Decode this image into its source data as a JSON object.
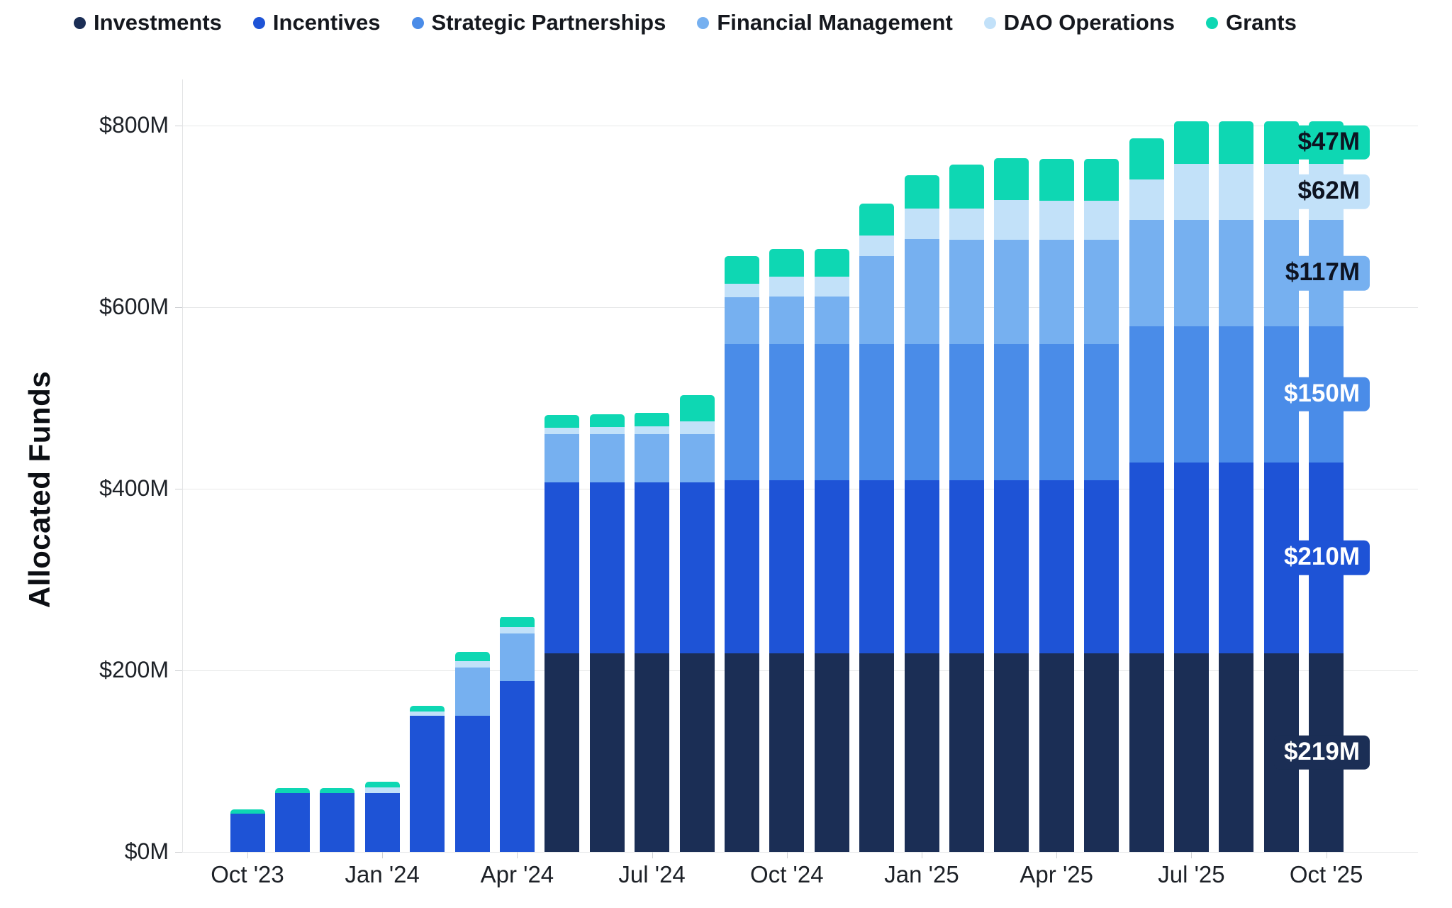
{
  "legend": {
    "items": [
      {
        "label": "Investments",
        "color": "#1b2e55"
      },
      {
        "label": "Incentives",
        "color": "#1e53d6"
      },
      {
        "label": "Strategic Partnerships",
        "color": "#4a8ce8"
      },
      {
        "label": "Financial Management",
        "color": "#76b0f0"
      },
      {
        "label": "DAO Operations",
        "color": "#c2e1f9"
      },
      {
        "label": "Grants",
        "color": "#0ed7b3"
      }
    ]
  },
  "chart_data": {
    "type": "bar",
    "stacked": true,
    "title": "",
    "xlabel": "",
    "ylabel": "Allocated Funds",
    "unit": "$M",
    "ylim": [
      0,
      800
    ],
    "grid": true,
    "legend_position": "top-left",
    "y_ticks": [
      0,
      200,
      400,
      600,
      800
    ],
    "y_tick_labels": [
      "$0M",
      "$200M",
      "$400M",
      "$600M",
      "$800M"
    ],
    "x": [
      "Oct '23",
      "Nov '23",
      "Dec '23",
      "Jan '24",
      "Feb '24",
      "Mar '24",
      "Apr '24",
      "May '24",
      "Jun '24",
      "Jul '24",
      "Aug '24",
      "Sep '24",
      "Oct '24",
      "Nov '24",
      "Dec '24",
      "Jan '25",
      "Feb '25",
      "Mar '25",
      "Apr '25",
      "May '25",
      "Jun '25",
      "Jul '25",
      "Aug '25",
      "Sep '25",
      "Oct '25"
    ],
    "x_tick_labels": [
      "Oct '23",
      "Jan '24",
      "Apr '24",
      "Jul '24",
      "Oct '24",
      "Jan '25",
      "Apr '25",
      "Jul '25",
      "Oct '25"
    ],
    "series": [
      {
        "name": "Investments",
        "color": "#1b2e55",
        "values": [
          0,
          0,
          0,
          0,
          0,
          0,
          0,
          219,
          219,
          219,
          219,
          219,
          219,
          219,
          219,
          219,
          219,
          219,
          219,
          219,
          219,
          219,
          219,
          219,
          219
        ]
      },
      {
        "name": "Incentives",
        "color": "#1e53d6",
        "values": [
          42,
          65,
          65,
          65,
          150,
          150,
          188,
          188,
          188,
          188,
          188,
          190,
          190,
          190,
          190,
          190,
          190,
          190,
          190,
          190,
          210,
          210,
          210,
          210,
          210
        ]
      },
      {
        "name": "Strategic Partnerships",
        "color": "#4a8ce8",
        "values": [
          0,
          0,
          0,
          0,
          0,
          0,
          0,
          0,
          0,
          0,
          0,
          150,
          150,
          150,
          150,
          150,
          150,
          150,
          150,
          150,
          150,
          150,
          150,
          150,
          150
        ]
      },
      {
        "name": "Financial Management",
        "color": "#76b0f0",
        "values": [
          0,
          0,
          0,
          0,
          0,
          53,
          53,
          53,
          53,
          53,
          53,
          52,
          53,
          53,
          97,
          116,
          115,
          115,
          115,
          115,
          117,
          117,
          117,
          117,
          117
        ]
      },
      {
        "name": "DAO Operations",
        "color": "#c2e1f9",
        "values": [
          0,
          0,
          0,
          6,
          5,
          7,
          7,
          7,
          8,
          9,
          14,
          15,
          22,
          22,
          23,
          34,
          35,
          44,
          43,
          43,
          45,
          62,
          62,
          62,
          62
        ]
      },
      {
        "name": "Grants",
        "color": "#0ed7b3",
        "values": [
          5,
          5,
          5,
          6,
          6,
          10,
          11,
          14,
          14,
          15,
          29,
          30,
          30,
          30,
          35,
          36,
          48,
          46,
          46,
          46,
          45,
          47,
          47,
          47,
          47
        ]
      }
    ],
    "end_labels": [
      {
        "series": "Grants",
        "text": "$47M",
        "text_color": "#0d1321"
      },
      {
        "series": "DAO Operations",
        "text": "$62M",
        "text_color": "#0d1321"
      },
      {
        "series": "Financial Management",
        "text": "$117M",
        "text_color": "#0d1321"
      },
      {
        "series": "Strategic Partnerships",
        "text": "$150M",
        "text_color": "#ffffff"
      },
      {
        "series": "Incentives",
        "text": "$210M",
        "text_color": "#ffffff"
      },
      {
        "series": "Investments",
        "text": "$219M",
        "text_color": "#ffffff"
      }
    ]
  }
}
